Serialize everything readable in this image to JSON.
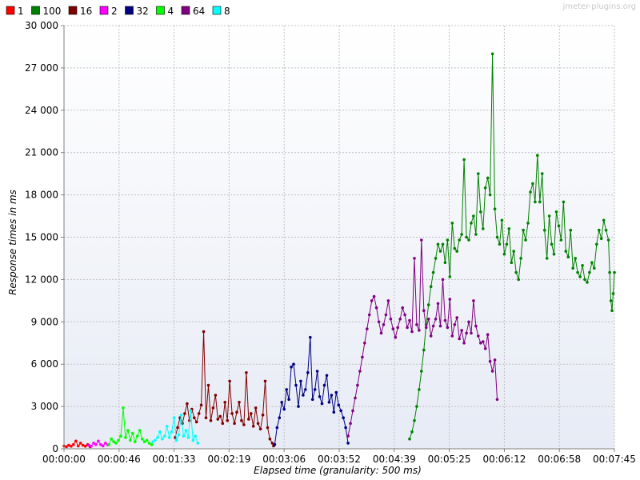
{
  "watermark": "jmeter-plugins.org",
  "chart_data": {
    "type": "line",
    "title": "",
    "xlabel": "Elapsed time (granularity: 500 ms)",
    "ylabel": "Response times in ms",
    "x_unit": "seconds",
    "xlim": [
      0,
      465
    ],
    "ylim": [
      0,
      30000
    ],
    "y_ticks": [
      0,
      3000,
      6000,
      9000,
      12000,
      15000,
      18000,
      21000,
      24000,
      27000,
      30000
    ],
    "y_tick_labels": [
      "0",
      "3 000",
      "6 000",
      "9 000",
      "12 000",
      "15 000",
      "18 000",
      "21 000",
      "24 000",
      "27 000",
      "30 000"
    ],
    "x_ticks": [
      0,
      46.5,
      93,
      139.5,
      186,
      232.5,
      279,
      325.5,
      372,
      418.5,
      465
    ],
    "x_tick_labels": [
      "00:00:00",
      "00:00:46",
      "00:01:33",
      "00:02:19",
      "00:03:06",
      "00:03:52",
      "00:04:39",
      "00:05:25",
      "00:06:12",
      "00:06:58",
      "00:07:45"
    ],
    "grid": true,
    "legend_position": "top-left",
    "series": [
      {
        "name": "1",
        "color": "#ff0000",
        "points": [
          [
            0,
            200
          ],
          [
            2,
            150
          ],
          [
            4,
            250
          ],
          [
            6,
            180
          ],
          [
            8,
            300
          ],
          [
            10,
            550
          ],
          [
            12,
            200
          ],
          [
            14,
            400
          ],
          [
            16,
            250
          ],
          [
            18,
            180
          ],
          [
            20,
            300
          ],
          [
            22,
            150
          ]
        ]
      },
      {
        "name": "100",
        "color": "#008000",
        "points": [
          [
            292,
            700
          ],
          [
            294,
            1200
          ],
          [
            296,
            2000
          ],
          [
            298,
            3000
          ],
          [
            300,
            4200
          ],
          [
            302,
            5500
          ],
          [
            304,
            7000
          ],
          [
            306,
            8800
          ],
          [
            308,
            10200
          ],
          [
            310,
            11500
          ],
          [
            312,
            12500
          ],
          [
            314,
            13500
          ],
          [
            316,
            14500
          ],
          [
            318,
            14000
          ],
          [
            320,
            14500
          ],
          [
            322,
            13200
          ],
          [
            324,
            14800
          ],
          [
            326,
            12200
          ],
          [
            328,
            16000
          ],
          [
            330,
            14200
          ],
          [
            332,
            14000
          ],
          [
            334,
            14800
          ],
          [
            336,
            15200
          ],
          [
            338,
            20500
          ],
          [
            340,
            15000
          ],
          [
            342,
            14800
          ],
          [
            344,
            16000
          ],
          [
            346,
            16500
          ],
          [
            348,
            15200
          ],
          [
            350,
            19500
          ],
          [
            352,
            16800
          ],
          [
            354,
            15600
          ],
          [
            356,
            18500
          ],
          [
            358,
            19200
          ],
          [
            360,
            18000
          ],
          [
            362,
            28000
          ],
          [
            364,
            17000
          ],
          [
            366,
            15000
          ],
          [
            368,
            14500
          ],
          [
            370,
            16200
          ],
          [
            372,
            13800
          ],
          [
            374,
            14500
          ],
          [
            376,
            15600
          ],
          [
            378,
            13200
          ],
          [
            380,
            14000
          ],
          [
            382,
            12500
          ],
          [
            384,
            12000
          ],
          [
            386,
            13500
          ],
          [
            388,
            15500
          ],
          [
            390,
            14800
          ],
          [
            392,
            16000
          ],
          [
            394,
            18200
          ],
          [
            396,
            18800
          ],
          [
            398,
            17500
          ],
          [
            400,
            20800
          ],
          [
            402,
            17500
          ],
          [
            404,
            19500
          ],
          [
            406,
            15500
          ],
          [
            408,
            13500
          ],
          [
            410,
            16500
          ],
          [
            412,
            14500
          ],
          [
            414,
            13800
          ],
          [
            416,
            16800
          ],
          [
            418,
            15800
          ],
          [
            420,
            14800
          ],
          [
            422,
            17500
          ],
          [
            424,
            14000
          ],
          [
            426,
            13600
          ],
          [
            428,
            15500
          ],
          [
            430,
            12800
          ],
          [
            432,
            13500
          ],
          [
            434,
            12500
          ],
          [
            436,
            12200
          ],
          [
            438,
            13000
          ],
          [
            440,
            12000
          ],
          [
            442,
            11800
          ],
          [
            444,
            12500
          ],
          [
            446,
            13200
          ],
          [
            448,
            12800
          ],
          [
            450,
            14500
          ],
          [
            452,
            15500
          ],
          [
            454,
            14900
          ],
          [
            456,
            16200
          ],
          [
            458,
            15500
          ],
          [
            460,
            14800
          ],
          [
            461,
            12500
          ],
          [
            462,
            10500
          ],
          [
            463,
            9800
          ],
          [
            464,
            11000
          ],
          [
            465,
            12500
          ]
        ]
      },
      {
        "name": "16",
        "color": "#800000",
        "points": [
          [
            94,
            800
          ],
          [
            96,
            1500
          ],
          [
            98,
            2200
          ],
          [
            100,
            1800
          ],
          [
            102,
            2500
          ],
          [
            104,
            3200
          ],
          [
            106,
            2000
          ],
          [
            108,
            2800
          ],
          [
            110,
            2200
          ],
          [
            112,
            1900
          ],
          [
            114,
            2500
          ],
          [
            116,
            3100
          ],
          [
            118,
            8300
          ],
          [
            120,
            2200
          ],
          [
            122,
            4500
          ],
          [
            124,
            2000
          ],
          [
            126,
            2900
          ],
          [
            128,
            3800
          ],
          [
            130,
            2100
          ],
          [
            132,
            2300
          ],
          [
            134,
            1800
          ],
          [
            136,
            3300
          ],
          [
            138,
            2000
          ],
          [
            140,
            4800
          ],
          [
            142,
            2500
          ],
          [
            144,
            1800
          ],
          [
            146,
            2600
          ],
          [
            148,
            3300
          ],
          [
            150,
            2000
          ],
          [
            152,
            1700
          ],
          [
            154,
            5400
          ],
          [
            156,
            2100
          ],
          [
            158,
            2500
          ],
          [
            160,
            1600
          ],
          [
            162,
            2900
          ],
          [
            164,
            1800
          ],
          [
            166,
            1400
          ],
          [
            168,
            2400
          ],
          [
            170,
            4800
          ],
          [
            172,
            1500
          ],
          [
            174,
            700
          ],
          [
            176,
            400
          ],
          [
            177,
            200
          ]
        ]
      },
      {
        "name": "2",
        "color": "#ff00ff",
        "points": [
          [
            21,
            250
          ],
          [
            23,
            180
          ],
          [
            25,
            400
          ],
          [
            27,
            300
          ],
          [
            29,
            550
          ],
          [
            31,
            300
          ],
          [
            33,
            200
          ],
          [
            35,
            400
          ],
          [
            37,
            280
          ]
        ]
      },
      {
        "name": "32",
        "color": "#000080",
        "points": [
          [
            178,
            300
          ],
          [
            180,
            1500
          ],
          [
            182,
            2200
          ],
          [
            184,
            3300
          ],
          [
            186,
            2800
          ],
          [
            188,
            4200
          ],
          [
            190,
            3500
          ],
          [
            192,
            5800
          ],
          [
            194,
            6000
          ],
          [
            196,
            4500
          ],
          [
            198,
            3000
          ],
          [
            200,
            4800
          ],
          [
            202,
            3800
          ],
          [
            204,
            4200
          ],
          [
            206,
            5400
          ],
          [
            208,
            7900
          ],
          [
            210,
            3500
          ],
          [
            212,
            4200
          ],
          [
            214,
            5500
          ],
          [
            216,
            3700
          ],
          [
            218,
            3200
          ],
          [
            220,
            4500
          ],
          [
            222,
            5200
          ],
          [
            224,
            3300
          ],
          [
            226,
            3800
          ],
          [
            228,
            2600
          ],
          [
            230,
            4000
          ],
          [
            232,
            3100
          ],
          [
            234,
            2700
          ],
          [
            236,
            2200
          ],
          [
            238,
            1500
          ],
          [
            240,
            400
          ]
        ]
      },
      {
        "name": "4",
        "color": "#00ff00",
        "points": [
          [
            38,
            300
          ],
          [
            40,
            700
          ],
          [
            42,
            500
          ],
          [
            44,
            400
          ],
          [
            46,
            600
          ],
          [
            48,
            900
          ],
          [
            50,
            2900
          ],
          [
            52,
            800
          ],
          [
            54,
            1300
          ],
          [
            56,
            600
          ],
          [
            58,
            1100
          ],
          [
            60,
            500
          ],
          [
            62,
            900
          ],
          [
            64,
            1300
          ],
          [
            66,
            700
          ],
          [
            68,
            500
          ],
          [
            70,
            600
          ],
          [
            72,
            400
          ],
          [
            74,
            300
          ]
        ]
      },
      {
        "name": "64",
        "color": "#800080",
        "points": [
          [
            240,
            900
          ],
          [
            242,
            1800
          ],
          [
            244,
            2700
          ],
          [
            246,
            3600
          ],
          [
            248,
            4500
          ],
          [
            250,
            5500
          ],
          [
            252,
            6500
          ],
          [
            254,
            7500
          ],
          [
            256,
            8500
          ],
          [
            258,
            9500
          ],
          [
            260,
            10500
          ],
          [
            262,
            10800
          ],
          [
            264,
            10000
          ],
          [
            266,
            9000
          ],
          [
            268,
            8200
          ],
          [
            270,
            8800
          ],
          [
            272,
            9500
          ],
          [
            274,
            10500
          ],
          [
            276,
            9200
          ],
          [
            278,
            8500
          ],
          [
            280,
            7900
          ],
          [
            282,
            8600
          ],
          [
            284,
            9200
          ],
          [
            286,
            10000
          ],
          [
            288,
            9500
          ],
          [
            290,
            8600
          ],
          [
            292,
            9100
          ],
          [
            294,
            8300
          ],
          [
            296,
            13500
          ],
          [
            298,
            8800
          ],
          [
            300,
            8400
          ],
          [
            302,
            14800
          ],
          [
            304,
            9800
          ],
          [
            306,
            8600
          ],
          [
            308,
            9200
          ],
          [
            310,
            8000
          ],
          [
            312,
            8700
          ],
          [
            314,
            9200
          ],
          [
            316,
            10300
          ],
          [
            318,
            8700
          ],
          [
            320,
            12000
          ],
          [
            322,
            9100
          ],
          [
            324,
            8600
          ],
          [
            326,
            10600
          ],
          [
            328,
            8000
          ],
          [
            330,
            8800
          ],
          [
            332,
            9300
          ],
          [
            334,
            7800
          ],
          [
            336,
            8400
          ],
          [
            338,
            7500
          ],
          [
            340,
            8200
          ],
          [
            342,
            9000
          ],
          [
            344,
            8200
          ],
          [
            346,
            10500
          ],
          [
            348,
            8700
          ],
          [
            350,
            8000
          ],
          [
            352,
            7500
          ],
          [
            354,
            7600
          ],
          [
            356,
            7100
          ],
          [
            358,
            8100
          ],
          [
            360,
            6200
          ],
          [
            362,
            5500
          ],
          [
            364,
            6300
          ],
          [
            366,
            3500
          ]
        ]
      },
      {
        "name": "8",
        "color": "#00ffff",
        "points": [
          [
            75,
            500
          ],
          [
            77,
            600
          ],
          [
            79,
            800
          ],
          [
            81,
            1200
          ],
          [
            83,
            700
          ],
          [
            85,
            900
          ],
          [
            87,
            1600
          ],
          [
            89,
            800
          ],
          [
            91,
            1200
          ],
          [
            93,
            2200
          ],
          [
            95,
            600
          ],
          [
            97,
            1000
          ],
          [
            99,
            2400
          ],
          [
            101,
            900
          ],
          [
            103,
            1300
          ],
          [
            105,
            800
          ],
          [
            107,
            2700
          ],
          [
            109,
            600
          ],
          [
            111,
            900
          ],
          [
            113,
            400
          ]
        ]
      }
    ]
  }
}
